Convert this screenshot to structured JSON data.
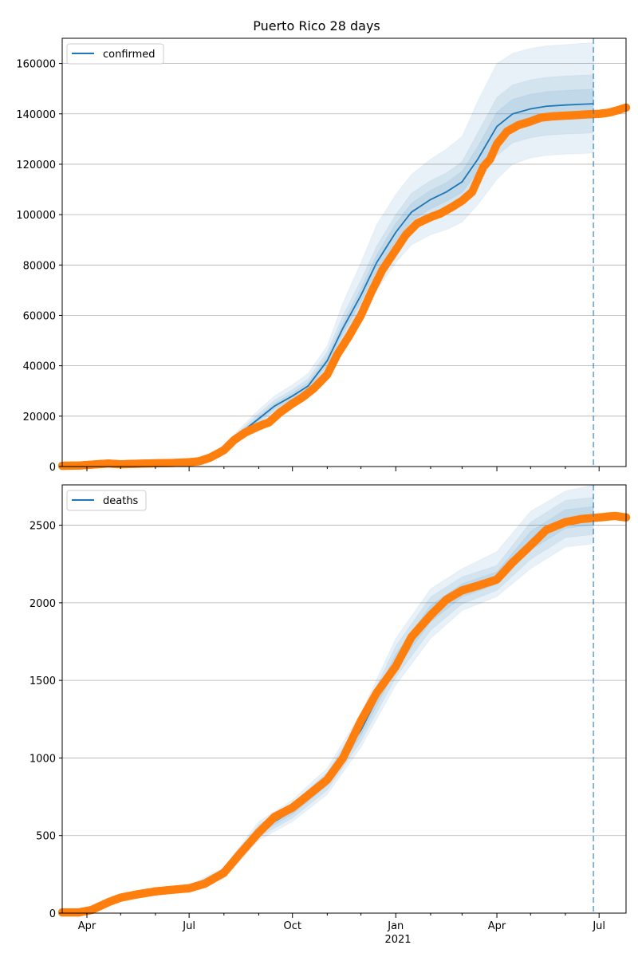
{
  "chart_data": [
    {
      "type": "line",
      "title": "Puerto Rico 28 days",
      "xlabel": "",
      "ylabel": "",
      "x_ticks": [
        "Apr",
        "Jul",
        "Oct",
        "Jan",
        "Apr",
        "Jul"
      ],
      "x_year_label": "2021",
      "x_range": [
        "2020-03-10",
        "2021-07-25"
      ],
      "ylim": [
        0,
        170000
      ],
      "y_ticks": [
        0,
        20000,
        40000,
        60000,
        80000,
        100000,
        120000,
        140000,
        160000
      ],
      "grid": "horizontal",
      "legend": {
        "placement": "top-left",
        "entries": [
          "confirmed"
        ]
      },
      "forecast_marker_date": "2021-06-26",
      "series": [
        {
          "name": "confirmed",
          "kind": "model line with uncertainty bands",
          "color": "#1f77b4",
          "x": [
            "2020-03-10",
            "2020-04-15",
            "2020-05-15",
            "2020-06-15",
            "2020-07-01",
            "2020-07-15",
            "2020-08-01",
            "2020-08-15",
            "2020-09-01",
            "2020-09-15",
            "2020-10-01",
            "2020-10-15",
            "2020-11-01",
            "2020-11-15",
            "2020-12-01",
            "2020-12-15",
            "2021-01-01",
            "2021-01-15",
            "2021-02-01",
            "2021-02-15",
            "2021-03-01",
            "2021-03-15",
            "2021-04-01",
            "2021-04-15",
            "2021-05-01",
            "2021-05-15",
            "2021-06-01",
            "2021-06-15",
            "2021-06-26"
          ],
          "values": [
            300,
            900,
            1000,
            1400,
            1700,
            3200,
            7000,
            13000,
            19000,
            24000,
            28000,
            32000,
            42000,
            55000,
            68000,
            81000,
            93000,
            101000,
            106000,
            109000,
            113000,
            122000,
            135000,
            140000,
            142000,
            143000,
            143500,
            143800,
            144000
          ],
          "bands": [
            {
              "lower": [
                200,
                800,
                900,
                1300,
                1600,
                3000,
                6000,
                11500,
                16500,
                21000,
                24500,
                28000,
                37000,
                47000,
                58000,
                70000,
                81000,
                88000,
                92000,
                94000,
                97000,
                104000,
                114000,
                120000,
                122500,
                123500,
                124000,
                124200,
                124500
              ],
              "upper": [
                400,
                1000,
                1100,
                1500,
                1800,
                3500,
                8000,
                15000,
                22500,
                28000,
                32500,
                37000,
                48000,
                65000,
                81000,
                96000,
                108000,
                116000,
                122000,
                126000,
                131000,
                145000,
                160000,
                164000,
                166000,
                167000,
                167500,
                168000,
                168200
              ]
            },
            {
              "lower": [
                220,
                830,
                930,
                1330,
                1630,
                3050,
                6300,
                12000,
                17300,
                22000,
                25500,
                29300,
                38800,
                50500,
                62500,
                75000,
                86000,
                94000,
                98500,
                101500,
                104500,
                112000,
                123500,
                128500,
                130500,
                131500,
                132000,
                132200,
                132500
              ],
              "upper": [
                380,
                970,
                1070,
                1470,
                1770,
                3400,
                7700,
                14200,
                21000,
                26300,
                30500,
                34800,
                45500,
                60000,
                74000,
                87500,
                100000,
                108500,
                113500,
                116500,
                121000,
                132500,
                146500,
                151500,
                153500,
                154500,
                155000,
                155300,
                155500
              ]
            },
            {
              "lower": [
                250,
                860,
                960,
                1360,
                1660,
                3100,
                6600,
                12500,
                18200,
                23000,
                26800,
                30700,
                40400,
                52800,
                65300,
                78000,
                89500,
                97500,
                102300,
                105300,
                108800,
                117000,
                129300,
                134200,
                136200,
                137200,
                137700,
                138000,
                138200
              ],
              "upper": [
                350,
                940,
                1040,
                1440,
                1740,
                3300,
                7400,
                13500,
                19800,
                25000,
                29200,
                33300,
                43600,
                57200,
                70700,
                84000,
                96500,
                104500,
                109700,
                112700,
                117200,
                127000,
                140700,
                145800,
                147800,
                148800,
                149300,
                149600,
                149800
              ]
            }
          ]
        },
        {
          "name": "",
          "kind": "observed points",
          "color": "#ff7f0e",
          "x": [
            "2020-03-10",
            "2020-03-25",
            "2020-04-10",
            "2020-04-20",
            "2020-05-01",
            "2020-05-15",
            "2020-06-01",
            "2020-06-15",
            "2020-07-01",
            "2020-07-10",
            "2020-07-20",
            "2020-08-01",
            "2020-08-10",
            "2020-08-20",
            "2020-09-01",
            "2020-09-10",
            "2020-09-20",
            "2020-10-01",
            "2020-10-10",
            "2020-10-20",
            "2020-11-01",
            "2020-11-10",
            "2020-11-20",
            "2020-12-01",
            "2020-12-10",
            "2020-12-20",
            "2021-01-01",
            "2021-01-10",
            "2021-01-20",
            "2021-02-01",
            "2021-02-10",
            "2021-02-20",
            "2021-03-01",
            "2021-03-10",
            "2021-03-20",
            "2021-03-26",
            "2021-04-01",
            "2021-04-10",
            "2021-04-20",
            "2021-05-01",
            "2021-05-10",
            "2021-05-20",
            "2021-06-01",
            "2021-06-10",
            "2021-06-20",
            "2021-07-01",
            "2021-07-10",
            "2021-07-18",
            "2021-07-25"
          ],
          "values": [
            300,
            400,
            900,
            1200,
            900,
            1100,
            1300,
            1400,
            1700,
            2100,
            3600,
            6500,
            10500,
            13500,
            16000,
            17500,
            21500,
            25000,
            27500,
            31000,
            36500,
            44500,
            51500,
            60000,
            69000,
            78000,
            86000,
            92000,
            96500,
            99000,
            100500,
            103000,
            105500,
            109000,
            119000,
            122000,
            128000,
            133000,
            135500,
            137000,
            138500,
            139000,
            139300,
            139500,
            139800,
            140000,
            140500,
            141500,
            142500
          ]
        }
      ]
    },
    {
      "type": "line",
      "title": "",
      "xlabel": "",
      "ylabel": "",
      "x_ticks": [
        "Apr",
        "Jul",
        "Oct",
        "Jan",
        "Apr",
        "Jul"
      ],
      "x_year_label": "2021",
      "x_range": [
        "2020-03-10",
        "2021-07-25"
      ],
      "ylim": [
        0,
        2760
      ],
      "y_ticks": [
        0,
        500,
        1000,
        1500,
        2000,
        2500
      ],
      "grid": "horizontal",
      "legend": {
        "placement": "top-left",
        "entries": [
          "deaths"
        ]
      },
      "forecast_marker_date": "2021-06-26",
      "series": [
        {
          "name": "deaths",
          "kind": "model line with uncertainty bands",
          "color": "#1f77b4",
          "x": [
            "2020-03-10",
            "2020-04-01",
            "2020-05-01",
            "2020-06-01",
            "2020-07-01",
            "2020-08-01",
            "2020-09-01",
            "2020-10-01",
            "2020-11-01",
            "2020-12-01",
            "2021-01-01",
            "2021-02-01",
            "2021-03-01",
            "2021-04-01",
            "2021-05-01",
            "2021-06-01",
            "2021-06-26"
          ],
          "values": [
            5,
            20,
            100,
            140,
            160,
            260,
            530,
            660,
            850,
            1180,
            1620,
            1930,
            2080,
            2160,
            2400,
            2540,
            2560
          ],
          "bands": [
            {
              "lower": [
                3,
                15,
                85,
                120,
                140,
                225,
                470,
                590,
                765,
                1070,
                1470,
                1770,
                1950,
                2040,
                2220,
                2360,
                2380
              ],
              "upper": [
                7,
                25,
                115,
                160,
                180,
                295,
                590,
                730,
                935,
                1290,
                1770,
                2090,
                2220,
                2330,
                2590,
                2720,
                2760
              ]
            },
            {
              "lower": [
                4,
                17,
                90,
                127,
                147,
                237,
                490,
                613,
                793,
                1107,
                1520,
                1823,
                1993,
                2080,
                2280,
                2420,
                2440
              ],
              "upper": [
                6,
                23,
                110,
                153,
                173,
                283,
                570,
                707,
                907,
                1253,
                1720,
                2037,
                2167,
                2240,
                2520,
                2660,
                2680
              ]
            },
            {
              "lower": [
                4,
                18,
                95,
                133,
                153,
                248,
                510,
                637,
                822,
                1143,
                1570,
                1877,
                2037,
                2120,
                2340,
                2480,
                2500
              ],
              "upper": [
                6,
                22,
                105,
                147,
                167,
                272,
                550,
                683,
                878,
                1217,
                1670,
                1983,
                2123,
                2200,
                2460,
                2600,
                2620
              ]
            }
          ]
        },
        {
          "name": "",
          "kind": "observed points",
          "color": "#ff7f0e",
          "x": [
            "2020-03-10",
            "2020-03-25",
            "2020-04-05",
            "2020-04-20",
            "2020-05-01",
            "2020-05-15",
            "2020-06-01",
            "2020-06-15",
            "2020-07-01",
            "2020-07-15",
            "2020-08-01",
            "2020-08-15",
            "2020-09-01",
            "2020-09-15",
            "2020-10-01",
            "2020-10-15",
            "2020-11-01",
            "2020-11-15",
            "2020-12-01",
            "2020-12-15",
            "2021-01-01",
            "2021-01-15",
            "2021-02-01",
            "2021-02-15",
            "2021-03-01",
            "2021-03-15",
            "2021-04-01",
            "2021-04-15",
            "2021-05-01",
            "2021-05-15",
            "2021-06-01",
            "2021-06-15",
            "2021-07-01",
            "2021-07-15",
            "2021-07-25"
          ],
          "values": [
            5,
            5,
            20,
            70,
            100,
            120,
            140,
            150,
            160,
            190,
            260,
            380,
            520,
            620,
            680,
            760,
            860,
            1000,
            1240,
            1420,
            1590,
            1780,
            1920,
            2020,
            2080,
            2110,
            2150,
            2260,
            2370,
            2470,
            2520,
            2540,
            2550,
            2560,
            2550
          ]
        }
      ]
    }
  ]
}
